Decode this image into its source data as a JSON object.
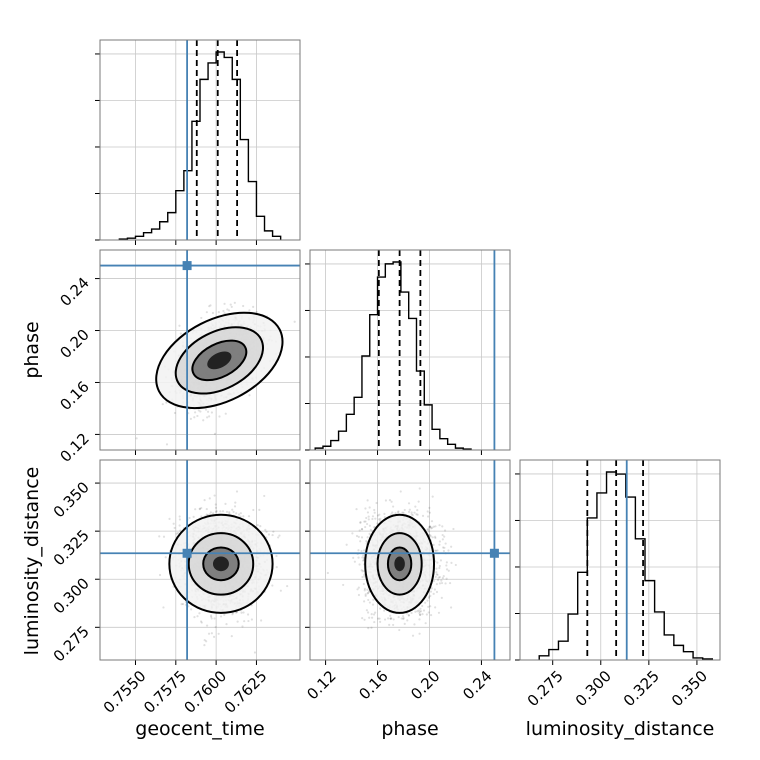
{
  "chart_data": {
    "type": "corner",
    "parameters": [
      "geocent_time",
      "phase",
      "luminosity_distance"
    ],
    "truths": {
      "geocent_time": 0.7582,
      "phase": 0.25,
      "luminosity_distance": 0.3135
    },
    "truth_color": "#4682b4",
    "xlim": {
      "geocent_time": [
        0.7528,
        0.7652
      ],
      "phase": [
        0.108,
        0.262
      ],
      "luminosity_distance": [
        0.258,
        0.362
      ]
    },
    "ticks": {
      "geocent_time": [
        "0.7550",
        "0.7575",
        "0.7600",
        "0.7625"
      ],
      "phase": [
        "0.12",
        "0.16",
        "0.20",
        "0.24"
      ],
      "luminosity_distance": [
        "0.275",
        "0.300",
        "0.325",
        "0.350"
      ]
    },
    "tick_values": {
      "geocent_time": [
        0.755,
        0.7575,
        0.76,
        0.7625
      ],
      "phase": [
        0.12,
        0.16,
        0.2,
        0.24
      ],
      "luminosity_distance": [
        0.275,
        0.3,
        0.325,
        0.35
      ]
    },
    "quantiles": {
      "geocent_time": [
        0.7588,
        0.7601,
        0.7613
      ],
      "phase": [
        0.161,
        0.177,
        0.193
      ],
      "luminosity_distance": [
        0.293,
        0.308,
        0.322
      ]
    },
    "histograms": {
      "geocent_time": {
        "edges": [
          0.754,
          0.7545,
          0.755,
          0.7555,
          0.756,
          0.7565,
          0.757,
          0.7575,
          0.758,
          0.7585,
          0.759,
          0.7595,
          0.76,
          0.7605,
          0.761,
          0.7615,
          0.762,
          0.7625,
          0.763,
          0.7635,
          0.764
        ],
        "counts": [
          0.5,
          1,
          2,
          4,
          6,
          10,
          15,
          27,
          38,
          65,
          88,
          97,
          103,
          100,
          88,
          55,
          32,
          13,
          5,
          2
        ]
      },
      "phase": {
        "edges": [
          0.112,
          0.118,
          0.124,
          0.13,
          0.136,
          0.142,
          0.148,
          0.154,
          0.16,
          0.166,
          0.172,
          0.178,
          0.184,
          0.19,
          0.196,
          0.202,
          0.208,
          0.214,
          0.22,
          0.226,
          0.232
        ],
        "counts": [
          1,
          2,
          5,
          10,
          19,
          28,
          50,
          72,
          92,
          99,
          100,
          84,
          70,
          42,
          24,
          11,
          6,
          3,
          1,
          0.5
        ]
      },
      "luminosity_distance": {
        "edges": [
          0.268,
          0.273,
          0.278,
          0.283,
          0.288,
          0.293,
          0.298,
          0.303,
          0.308,
          0.313,
          0.318,
          0.323,
          0.328,
          0.333,
          0.338,
          0.343,
          0.348,
          0.353,
          0.358
        ],
        "counts": [
          2,
          5,
          9,
          22,
          42,
          68,
          80,
          90,
          89,
          78,
          58,
          38,
          23,
          12,
          7,
          4,
          1,
          0.5
        ]
      }
    },
    "joint_2d": {
      "phase_vs_geocent_time": {
        "mean": [
          0.7602,
          0.177
        ],
        "sd": [
          0.0012,
          0.015
        ],
        "rho": 0.42,
        "scatter_n": 2200,
        "levels": [
          {
            "major": [
              0.0018,
              0.0127
            ],
            "angle": 27
          },
          {
            "major": [
              0.0029,
              0.022
            ],
            "angle": 27
          },
          {
            "major": [
              0.0042,
              0.0315
            ],
            "angle": 27
          }
        ]
      },
      "luminosity_distance_vs_geocent_time": {
        "mean": [
          0.7603,
          0.308
        ],
        "sd": [
          0.0012,
          0.012
        ],
        "rho": 0.0,
        "scatter_n": 2200,
        "levels": [
          {
            "major": [
              0.0011,
              0.0085
            ],
            "angle": 0
          },
          {
            "major": [
              0.002,
              0.016
            ],
            "angle": 0
          },
          {
            "major": [
              0.0032,
              0.0255
            ],
            "angle": 0
          }
        ]
      },
      "luminosity_distance_vs_phase": {
        "mean": [
          0.177,
          0.308
        ],
        "sd": [
          0.013,
          0.012
        ],
        "rho": 0.0,
        "scatter_n": 2200,
        "levels": [
          {
            "major": [
              0.009,
              0.0085
            ],
            "angle": 0
          },
          {
            "major": [
              0.017,
              0.016
            ],
            "angle": 0
          },
          {
            "major": [
              0.0265,
              0.0255
            ],
            "angle": 0
          }
        ]
      }
    },
    "grid": true
  }
}
